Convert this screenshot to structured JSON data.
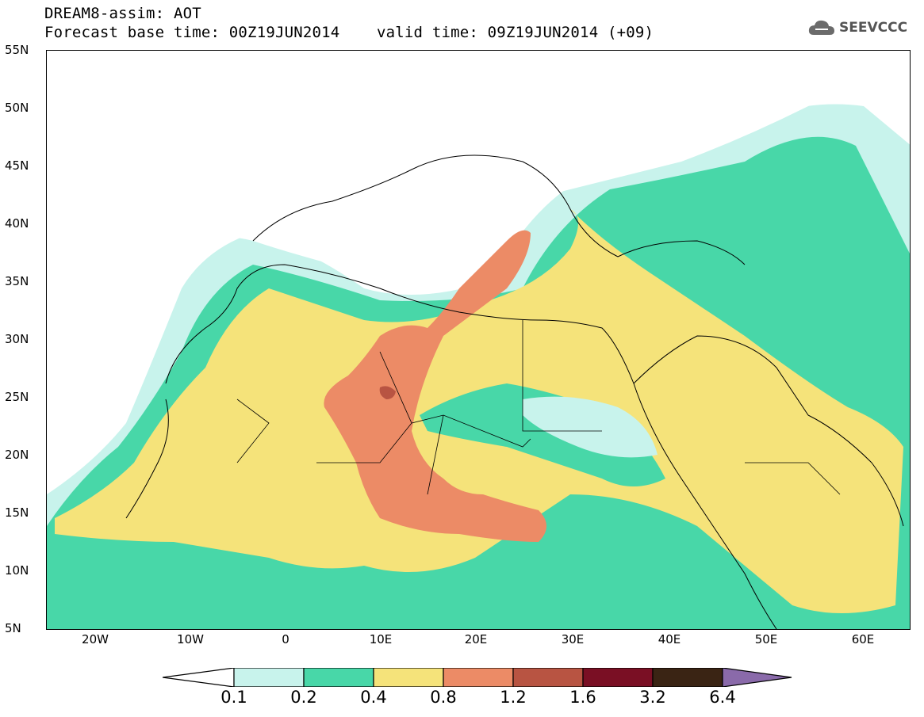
{
  "header": {
    "title": "DREAM8-assim: AOT",
    "subtitle": "Forecast base time: 00Z19JUN2014    valid time: 09Z19JUN2014 (+09)"
  },
  "logo": {
    "text": "SEEVCCC",
    "icon": "cloud-icon"
  },
  "axes": {
    "lat_labels": [
      "55N",
      "50N",
      "45N",
      "40N",
      "35N",
      "30N",
      "25N",
      "20N",
      "15N",
      "10N",
      "5N"
    ],
    "lon_labels": [
      "20W",
      "10W",
      "0",
      "10E",
      "20E",
      "30E",
      "40E",
      "50E",
      "60E"
    ]
  },
  "legend": {
    "levels": [
      "0.1",
      "0.2",
      "0.4",
      "0.8",
      "1.2",
      "1.6",
      "3.2",
      "6.4"
    ],
    "colors": [
      "#c8f3ec",
      "#48d7a8",
      "#f5e37a",
      "#ec8b66",
      "#b85442",
      "#7a0f24",
      "#3a2414",
      "#8a6aaa"
    ]
  },
  "map": {
    "variable": "AOT",
    "extent": {
      "lon": [
        -25,
        65
      ],
      "lat": [
        5,
        55
      ]
    }
  }
}
